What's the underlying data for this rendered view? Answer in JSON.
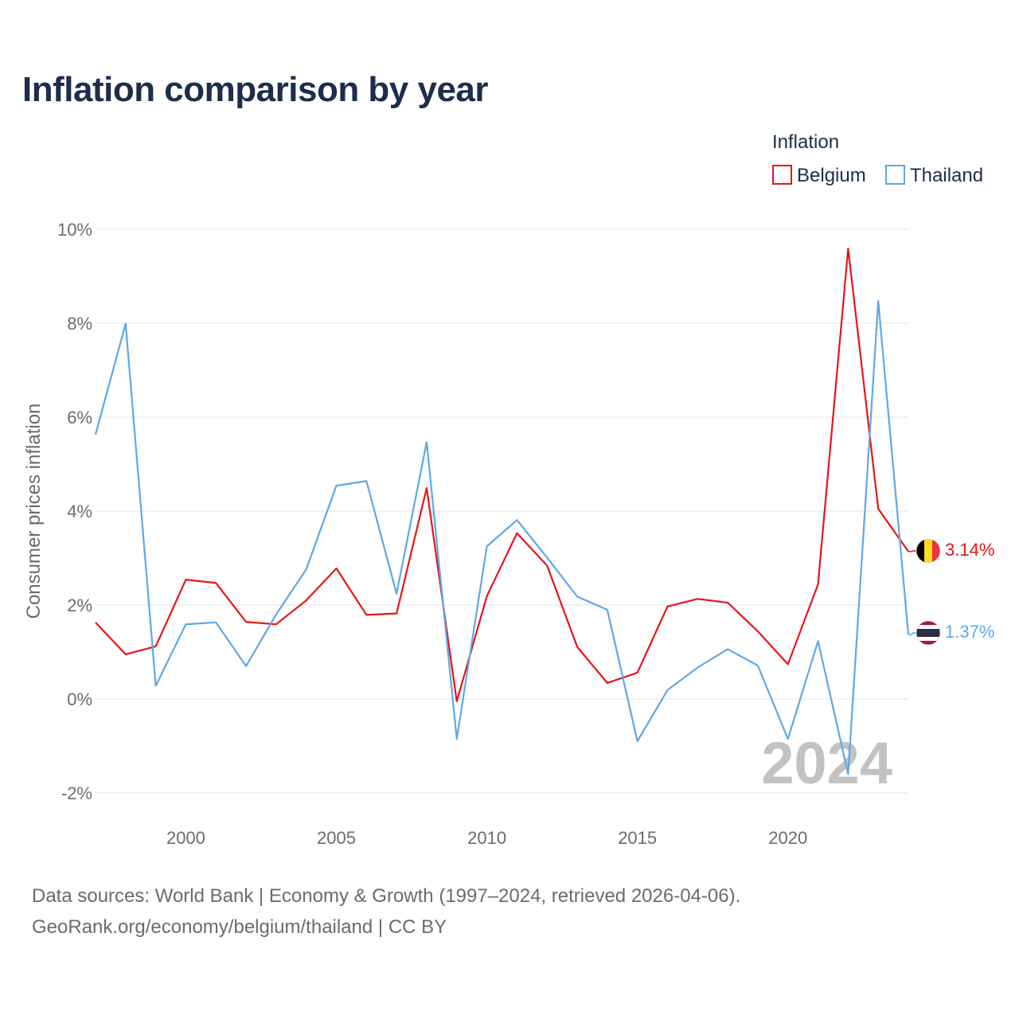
{
  "title": "Inflation comparison by year",
  "chart_data": {
    "type": "line",
    "title": "Inflation comparison by year",
    "xlabel": "",
    "ylabel": "Consumer prices inflation",
    "x": [
      1997,
      1998,
      1999,
      2000,
      2001,
      2002,
      2003,
      2004,
      2005,
      2006,
      2007,
      2008,
      2009,
      2010,
      2011,
      2012,
      2013,
      2014,
      2015,
      2016,
      2017,
      2018,
      2019,
      2020,
      2021,
      2022,
      2023,
      2024
    ],
    "xlim": [
      1997,
      2024
    ],
    "ylim": [
      -2,
      10
    ],
    "x_ticks": [
      2000,
      2005,
      2010,
      2015,
      2020
    ],
    "y_ticks": [
      -2,
      0,
      2,
      4,
      6,
      8,
      10
    ],
    "y_tick_labels": [
      "-2%",
      "0%",
      "2%",
      "4%",
      "6%",
      "8%",
      "10%"
    ],
    "grid": true,
    "legend_title": "Inflation",
    "legend_position": "top-right",
    "year_watermark": "2024",
    "series": [
      {
        "name": "Belgium",
        "color": "#e8141b",
        "values": [
          1.63,
          0.95,
          1.12,
          2.54,
          2.47,
          1.64,
          1.59,
          2.1,
          2.78,
          1.79,
          1.82,
          4.49,
          -0.05,
          2.19,
          3.53,
          2.84,
          1.11,
          0.34,
          0.56,
          1.97,
          2.13,
          2.05,
          1.44,
          0.74,
          2.44,
          9.59,
          4.05,
          3.14
        ],
        "end_label": "3.14%",
        "flag_icon": "belgium-flag-icon"
      },
      {
        "name": "Thailand",
        "color": "#5ea8e6",
        "values": [
          5.63,
          7.99,
          0.28,
          1.59,
          1.63,
          0.7,
          1.8,
          2.76,
          4.54,
          4.64,
          2.24,
          5.47,
          -0.85,
          3.25,
          3.81,
          3.01,
          2.18,
          1.9,
          -0.9,
          0.19,
          0.67,
          1.06,
          0.71,
          -0.85,
          1.23,
          -1.6,
          8.47,
          1.37
        ],
        "end_label": "1.37%",
        "flag_icon": "thailand-flag-icon"
      }
    ]
  },
  "footer": {
    "line1": "Data sources: World Bank | Economy & Growth (1997–2024, retrieved 2026-04-06).",
    "line2": "GeoRank.org/economy/belgium/thailand | CC BY"
  }
}
